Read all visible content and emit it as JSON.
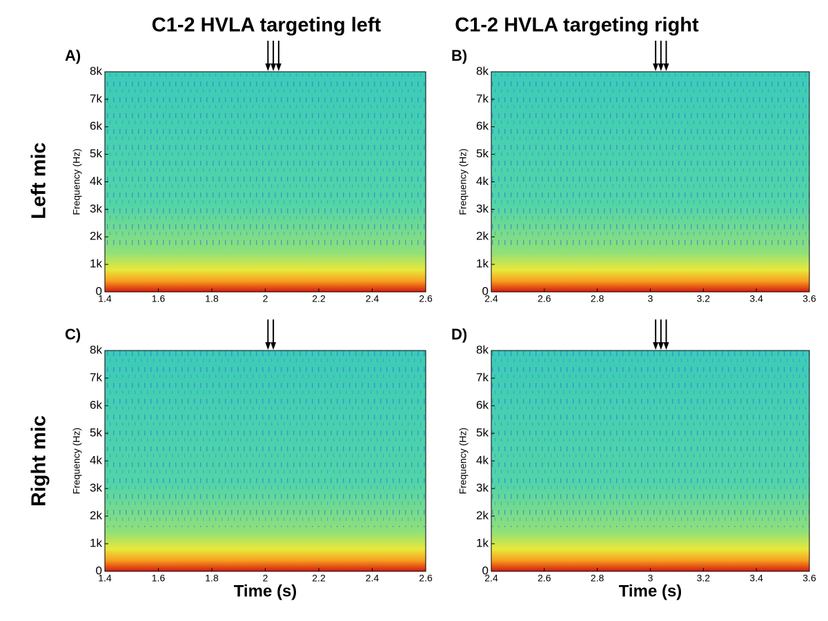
{
  "column_titles": [
    "C1-2 HVLA targeting left",
    "C1-2 HVLA targeting right"
  ],
  "row_labels": [
    "Left mic",
    "Right mic"
  ],
  "chart_data": [
    {
      "type": "spectrogram",
      "panel_label": "A)",
      "y_label": "Frequency (Hz)",
      "xlim": [
        1.4,
        2.6
      ],
      "xticks": [
        1.4,
        1.6,
        1.8,
        2,
        2.2,
        2.4,
        2.6
      ],
      "ylim": [
        0,
        8000
      ],
      "yticks": [
        0,
        {
          "value": 1000,
          "label": "1k"
        },
        {
          "value": 2000,
          "label": "2k"
        },
        {
          "value": 3000,
          "label": "3k"
        },
        {
          "value": 4000,
          "label": "4k"
        },
        {
          "value": 5000,
          "label": "5k"
        },
        {
          "value": 6000,
          "label": "6k"
        },
        {
          "value": 7000,
          "label": "7k"
        },
        {
          "value": 8000,
          "label": "8k"
        }
      ],
      "arrows_x": [
        2.01,
        2.03,
        2.05
      ]
    },
    {
      "type": "spectrogram",
      "panel_label": "B)",
      "y_label": "Frequency (Hz)",
      "xlim": [
        2.4,
        3.6
      ],
      "xticks": [
        2.4,
        2.6,
        2.8,
        3,
        3.2,
        3.4,
        3.6
      ],
      "ylim": [
        0,
        8000
      ],
      "yticks": [
        0,
        {
          "value": 1000,
          "label": "1k"
        },
        {
          "value": 2000,
          "label": "2k"
        },
        {
          "value": 3000,
          "label": "3k"
        },
        {
          "value": 4000,
          "label": "4k"
        },
        {
          "value": 5000,
          "label": "5k"
        },
        {
          "value": 6000,
          "label": "6k"
        },
        {
          "value": 7000,
          "label": "7k"
        },
        {
          "value": 8000,
          "label": "8k"
        }
      ],
      "arrows_x": [
        3.02,
        3.04,
        3.06
      ]
    },
    {
      "type": "spectrogram",
      "panel_label": "C)",
      "y_label": "Frequency (Hz)",
      "x_label": "Time (s)",
      "xlim": [
        1.4,
        2.6
      ],
      "xticks": [
        1.4,
        1.6,
        1.8,
        2,
        2.2,
        2.4,
        2.6
      ],
      "ylim": [
        0,
        8000
      ],
      "yticks": [
        0,
        {
          "value": 1000,
          "label": "1k"
        },
        {
          "value": 2000,
          "label": "2k"
        },
        {
          "value": 3000,
          "label": "3k"
        },
        {
          "value": 4000,
          "label": "4k"
        },
        {
          "value": 5000,
          "label": "5k"
        },
        {
          "value": 6000,
          "label": "6k"
        },
        {
          "value": 7000,
          "label": "7k"
        },
        {
          "value": 8000,
          "label": "8k"
        }
      ],
      "arrows_x": [
        2.01,
        2.03
      ]
    },
    {
      "type": "spectrogram",
      "panel_label": "D)",
      "y_label": "Frequency (Hz)",
      "x_label": "Time (s)",
      "xlim": [
        2.4,
        3.6
      ],
      "xticks": [
        2.4,
        2.6,
        2.8,
        3,
        3.2,
        3.4,
        3.6
      ],
      "ylim": [
        0,
        8000
      ],
      "yticks": [
        0,
        {
          "value": 1000,
          "label": "1k"
        },
        {
          "value": 2000,
          "label": "2k"
        },
        {
          "value": 3000,
          "label": "3k"
        },
        {
          "value": 4000,
          "label": "4k"
        },
        {
          "value": 5000,
          "label": "5k"
        },
        {
          "value": 6000,
          "label": "6k"
        },
        {
          "value": 7000,
          "label": "7k"
        },
        {
          "value": 8000,
          "label": "8k"
        }
      ],
      "arrows_x": [
        3.02,
        3.04,
        3.06
      ]
    }
  ]
}
